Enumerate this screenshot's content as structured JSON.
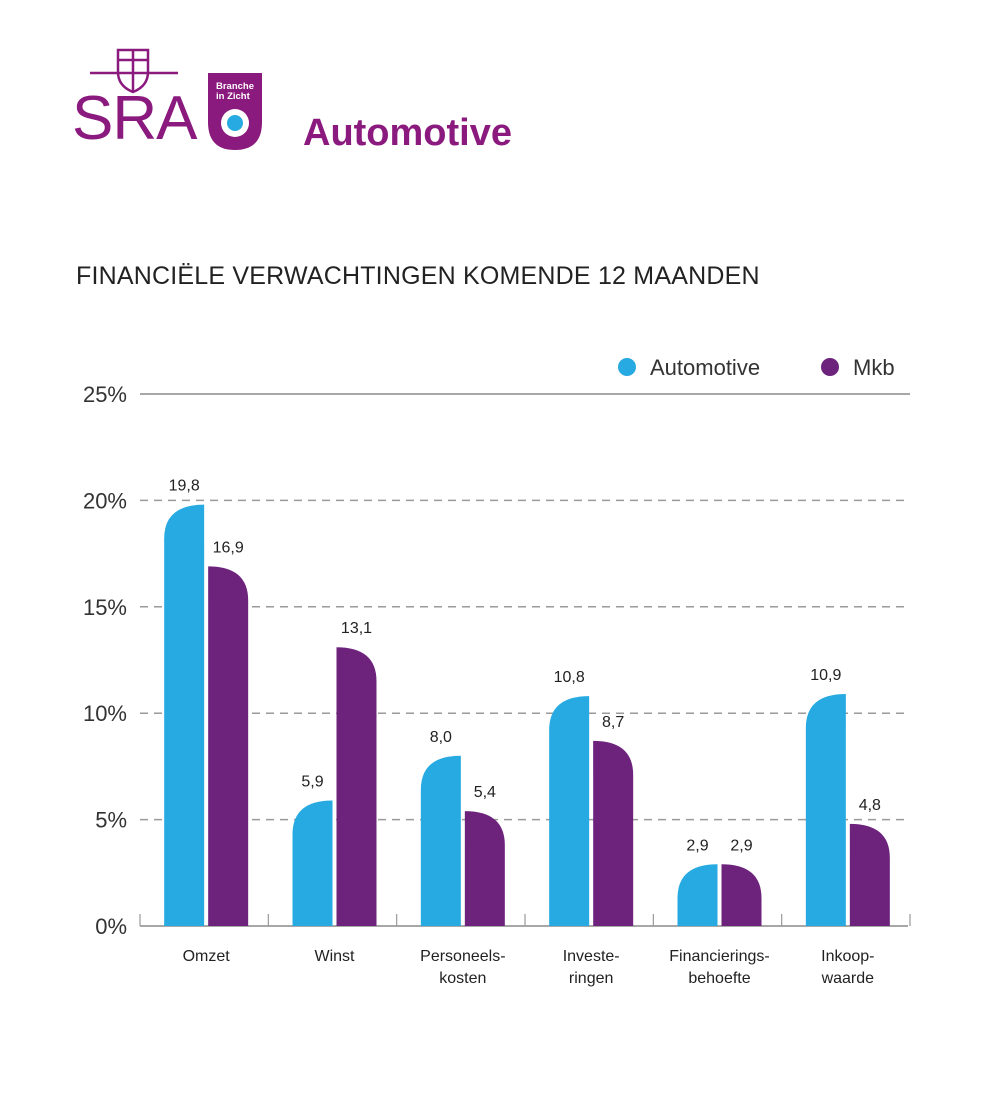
{
  "header": {
    "logo_text": "SRA",
    "badge_text_line1": "Branche",
    "badge_text_line2": "in Zicht",
    "brand_title": "Automotive"
  },
  "colors": {
    "brand_purple": "#8b1a7e",
    "automotive": "#27aae1",
    "mkb": "#6d237c",
    "grid": "#9a9a9a",
    "badge_dot": "#27aae1"
  },
  "chart_data": {
    "type": "bar",
    "title": "FINANCIËLE VERWACHTINGEN KOMENDE 12 MAANDEN",
    "xlabel": "",
    "ylabel": "",
    "ylim": [
      0,
      25
    ],
    "yticks": [
      "0%",
      "5%",
      "10%",
      "15%",
      "20%",
      "25%"
    ],
    "categories": [
      [
        "Omzet"
      ],
      [
        "Winst"
      ],
      [
        "Personeels-",
        "kosten"
      ],
      [
        "Investe-",
        "ringen"
      ],
      [
        "Financierings-",
        "behoefte"
      ],
      [
        "Inkoop-",
        "waarde"
      ]
    ],
    "series": [
      {
        "name": "Automotive",
        "values": [
          19.8,
          5.9,
          8.0,
          10.8,
          2.9,
          10.9
        ],
        "labels": [
          "19,8",
          "5,9",
          "8,0",
          "10,8",
          "2,9",
          "10,9"
        ]
      },
      {
        "name": "Mkb",
        "values": [
          16.9,
          13.1,
          5.4,
          8.7,
          2.9,
          4.8
        ],
        "labels": [
          "16,9",
          "13,1",
          "5,4",
          "8,7",
          "2,9",
          "4,8"
        ]
      }
    ],
    "grid": "dashed horizontal",
    "legend_position": "top-right"
  }
}
